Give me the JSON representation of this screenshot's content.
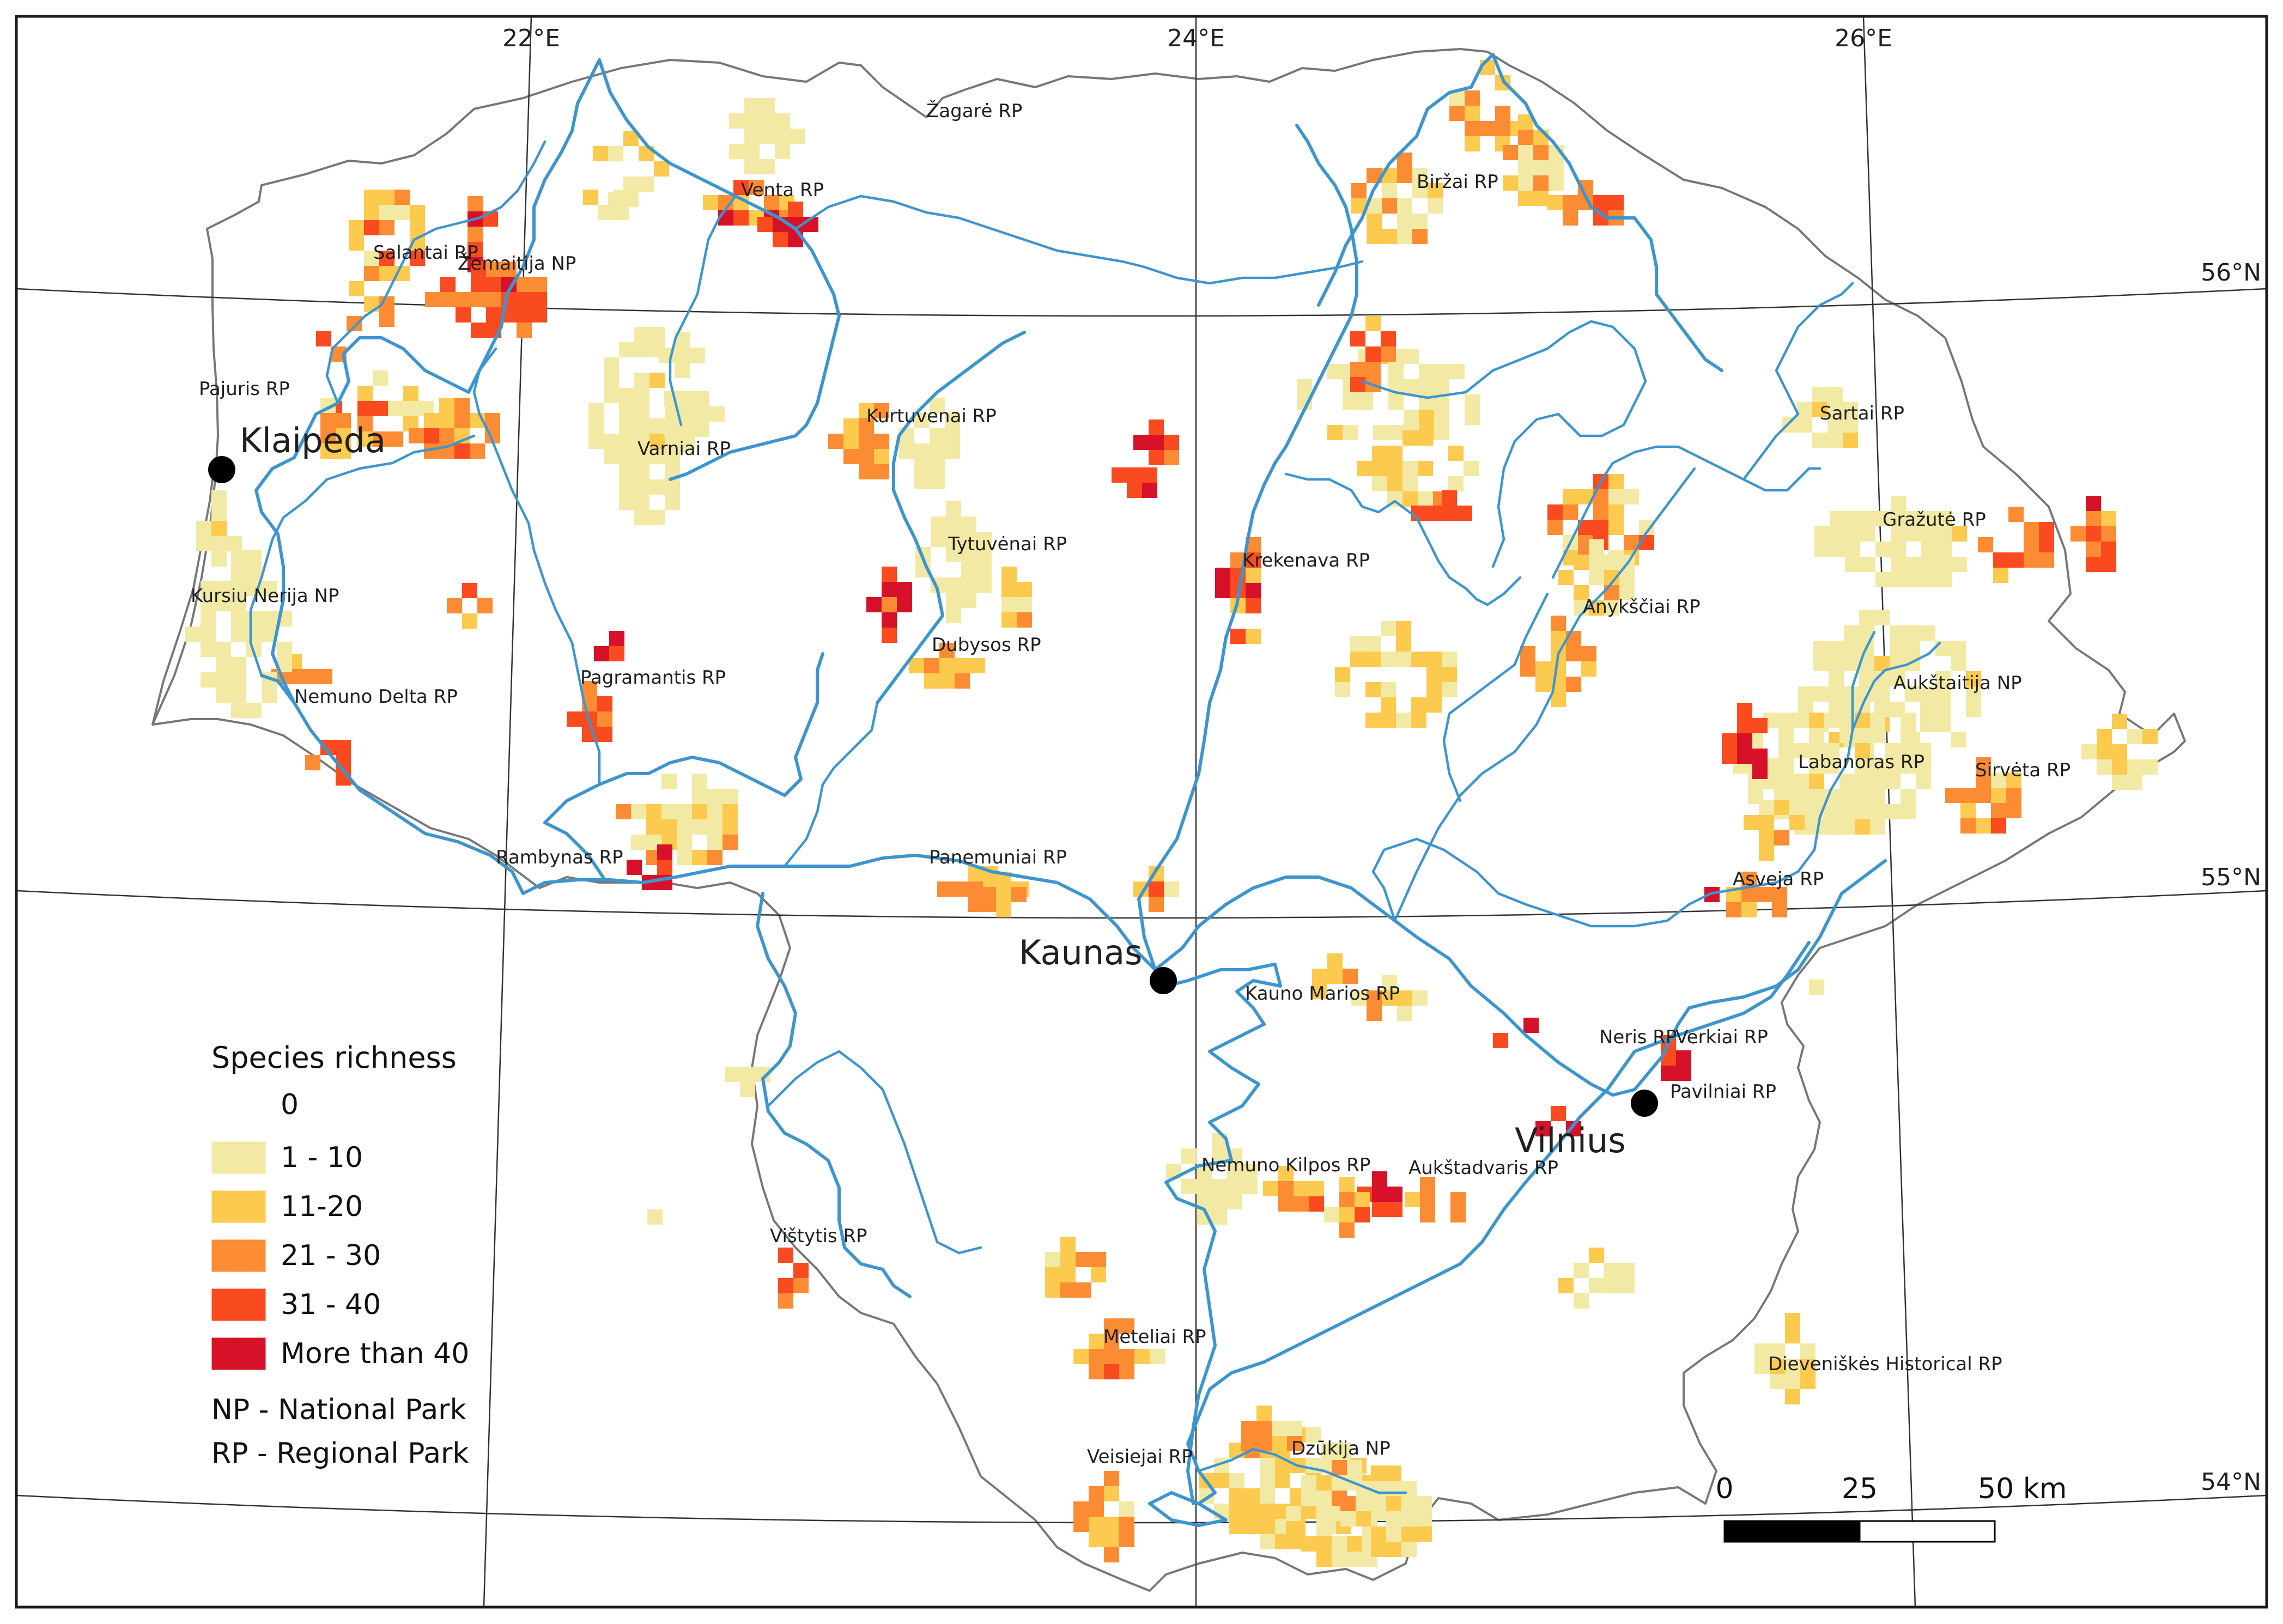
{
  "colors": {
    "c1": "#f2eaa4",
    "c2": "#fcca4e",
    "c3": "#fb8c33",
    "c4": "#f94a20",
    "c5": "#d6122a",
    "river": "#3d95cf",
    "border": "#777777"
  },
  "graticule": {
    "lon_labels": [
      "22°E",
      "24°E",
      "26°E"
    ],
    "lat_labels": [
      "56°N",
      "55°N",
      "54°N"
    ]
  },
  "cities": [
    {
      "id": "klaipeda",
      "name": "Klaipeda"
    },
    {
      "id": "kaunas",
      "name": "Kaunas"
    },
    {
      "id": "vilnius",
      "name": "Vilnius"
    }
  ],
  "parks": [
    "Žagarė RP",
    "Venta RP",
    "Biržai RP",
    "Salantai RP",
    "Žemaitija NP",
    "Pajuris RP",
    "Kurtuvenai RP",
    "Sartai RP",
    "Varniai RP",
    "Gražutė RP",
    "Tytuvėnai RP",
    "Krekenava RP",
    "Kursiu Nerija NP",
    "Anykščiai RP",
    "Dubysos RP",
    "Pagramantis RP",
    "Aukštaitija NP",
    "Nemuno Delta RP",
    "Labanoras RP",
    "Sirvėta RP",
    "Rambynas RP",
    "Panemuniai RP",
    "Asveja RP",
    "Kauno Marios RP",
    "Neris RP",
    "Verkiai RP",
    "Pavilniai RP",
    "Nemuno Kilpos RP",
    "Aukštadvaris RP",
    "Vištytis RP",
    "Meteliai RP",
    "Dieveniškės Historical RP",
    "Veisiejai RP",
    "Dzūkija NP"
  ],
  "legend": {
    "title": "Species richness",
    "classes": [
      {
        "label": "0",
        "color": "#ffffff"
      },
      {
        "label": "1 - 10",
        "color": "#f2eaa4"
      },
      {
        "label": "11-20",
        "color": "#fcca4e"
      },
      {
        "label": "21 - 30",
        "color": "#fb8c33"
      },
      {
        "label": "31 - 40",
        "color": "#f94a20"
      },
      {
        "label": "More than 40",
        "color": "#d6122a"
      }
    ],
    "notes": [
      "NP - National Park",
      "RP - Regional Park"
    ]
  },
  "scalebar": {
    "labels": [
      "0",
      "25",
      "50 km"
    ]
  }
}
